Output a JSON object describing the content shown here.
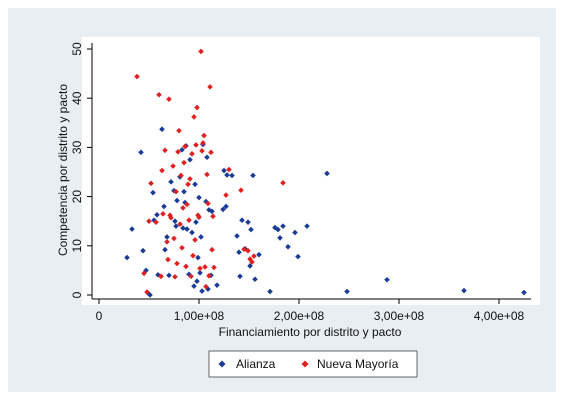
{
  "chart_data": {
    "type": "scatter",
    "xlabel": "Financiamiento por distrito y pacto",
    "ylabel": "Competencia por distrito y pacto",
    "xlim": [
      0,
      430000000
    ],
    "ylim": [
      0,
      52
    ],
    "x_ticks": [
      {
        "value": 0,
        "label": "0"
      },
      {
        "value": 100000000,
        "label": "1,00e+08"
      },
      {
        "value": 200000000,
        "label": "2,00e+08"
      },
      {
        "value": 300000000,
        "label": "3,00e+08"
      },
      {
        "value": 400000000,
        "label": "4,00e+08"
      }
    ],
    "y_ticks": [
      {
        "value": 0,
        "label": "0"
      },
      {
        "value": 10,
        "label": "10"
      },
      {
        "value": 20,
        "label": "20"
      },
      {
        "value": 30,
        "label": "30"
      },
      {
        "value": 40,
        "label": "40"
      },
      {
        "value": 50,
        "label": "50"
      }
    ],
    "legend_position": "bottom",
    "grid": false,
    "series": [
      {
        "name": "Alianza",
        "color": "#1a3c96",
        "marker": "diamond",
        "points": [
          [
            28000000,
            7.6
          ],
          [
            33000000,
            13.4
          ],
          [
            42000000,
            29
          ],
          [
            44000000,
            9
          ],
          [
            47000000,
            5
          ],
          [
            49000000,
            0.4
          ],
          [
            51000000,
            0
          ],
          [
            54000000,
            20.8
          ],
          [
            55000000,
            15.2
          ],
          [
            58000000,
            16.3
          ],
          [
            59000000,
            4.1
          ],
          [
            63000000,
            33.7
          ],
          [
            65000000,
            18
          ],
          [
            66000000,
            9.2
          ],
          [
            68000000,
            11.8
          ],
          [
            70000000,
            4
          ],
          [
            72000000,
            23
          ],
          [
            75000000,
            21.2
          ],
          [
            76000000,
            15
          ],
          [
            77000000,
            14
          ],
          [
            78000000,
            19.2
          ],
          [
            81000000,
            24
          ],
          [
            83000000,
            29.5
          ],
          [
            84000000,
            13.6
          ],
          [
            85000000,
            21
          ],
          [
            86000000,
            18.8
          ],
          [
            87000000,
            30.3
          ],
          [
            88000000,
            13.4
          ],
          [
            90000000,
            4.2
          ],
          [
            91000000,
            27.5
          ],
          [
            93000000,
            12.7
          ],
          [
            95000000,
            1.8
          ],
          [
            96000000,
            22.5
          ],
          [
            97000000,
            14.8
          ],
          [
            98000000,
            2.8
          ],
          [
            99000000,
            7.6
          ],
          [
            100000000,
            19.8
          ],
          [
            101000000,
            4.5
          ],
          [
            102000000,
            11.8
          ],
          [
            103000000,
            0.8
          ],
          [
            104000000,
            30.6
          ],
          [
            107000000,
            19
          ],
          [
            108000000,
            28
          ],
          [
            109000000,
            1.2
          ],
          [
            110000000,
            17.3
          ],
          [
            112000000,
            4
          ],
          [
            113000000,
            17
          ],
          [
            118000000,
            2
          ],
          [
            124000000,
            17.4
          ],
          [
            125000000,
            25.3
          ],
          [
            127000000,
            18
          ],
          [
            128000000,
            24.4
          ],
          [
            133000000,
            24.3
          ],
          [
            138000000,
            12
          ],
          [
            140000000,
            8.7
          ],
          [
            141000000,
            3.8
          ],
          [
            143000000,
            15.2
          ],
          [
            146000000,
            9.4
          ],
          [
            149000000,
            14.8
          ],
          [
            151000000,
            5.9
          ],
          [
            152000000,
            13.3
          ],
          [
            154000000,
            24.3
          ],
          [
            156000000,
            3.2
          ],
          [
            160000000,
            8.2
          ],
          [
            171000000,
            0.7
          ],
          [
            176000000,
            13.7
          ],
          [
            179000000,
            13.3
          ],
          [
            181000000,
            11.6
          ],
          [
            184000000,
            14
          ],
          [
            189000000,
            9.8
          ],
          [
            196000000,
            12.7
          ],
          [
            199000000,
            7.8
          ],
          [
            208000000,
            14
          ],
          [
            228000000,
            24.7
          ],
          [
            248000000,
            0.7
          ],
          [
            288000000,
            3.1
          ],
          [
            365000000,
            0.9
          ],
          [
            425000000,
            0.5
          ]
        ]
      },
      {
        "name": "Nueva Mayoría",
        "color": "#e02121",
        "marker": "diamond",
        "points": [
          [
            38000000,
            44.4
          ],
          [
            45000000,
            4.4
          ],
          [
            48000000,
            0.6
          ],
          [
            50000000,
            15
          ],
          [
            52000000,
            22.7
          ],
          [
            57000000,
            14.8
          ],
          [
            60000000,
            40.7
          ],
          [
            62000000,
            3.8
          ],
          [
            63000000,
            25.3
          ],
          [
            64000000,
            16.5
          ],
          [
            66000000,
            29.4
          ],
          [
            68000000,
            10.8
          ],
          [
            69000000,
            7.2
          ],
          [
            70000000,
            39.8
          ],
          [
            71000000,
            16.2
          ],
          [
            72000000,
            15.7
          ],
          [
            74000000,
            26.2
          ],
          [
            75000000,
            11.5
          ],
          [
            76000000,
            3.7
          ],
          [
            77000000,
            21
          ],
          [
            78000000,
            6.4
          ],
          [
            79000000,
            29.1
          ],
          [
            80000000,
            33.4
          ],
          [
            81000000,
            14.4
          ],
          [
            82000000,
            24.3
          ],
          [
            83000000,
            9.6
          ],
          [
            84000000,
            17.7
          ],
          [
            85000000,
            26.9
          ],
          [
            86000000,
            30.2
          ],
          [
            87000000,
            5.8
          ],
          [
            88000000,
            18.4
          ],
          [
            89000000,
            22.5
          ],
          [
            90000000,
            15.2
          ],
          [
            91000000,
            23.6
          ],
          [
            92000000,
            3.8
          ],
          [
            93000000,
            28.7
          ],
          [
            94000000,
            8
          ],
          [
            95000000,
            36.2
          ],
          [
            96000000,
            11.2
          ],
          [
            97000000,
            30.5
          ],
          [
            98000000,
            38.1
          ],
          [
            99000000,
            16.2
          ],
          [
            100000000,
            15.8
          ],
          [
            101000000,
            5.4
          ],
          [
            102000000,
            49.5
          ],
          [
            103000000,
            29.3
          ],
          [
            104000000,
            30.9
          ],
          [
            105000000,
            32.4
          ],
          [
            106000000,
            5.7
          ],
          [
            107000000,
            1.7
          ],
          [
            108000000,
            24.5
          ],
          [
            109000000,
            18.6
          ],
          [
            110000000,
            3.9
          ],
          [
            111000000,
            42.3
          ],
          [
            112000000,
            29
          ],
          [
            113000000,
            9.2
          ],
          [
            114000000,
            16
          ],
          [
            115000000,
            5.6
          ],
          [
            127000000,
            20.3
          ],
          [
            130000000,
            25.5
          ],
          [
            142000000,
            21.3
          ],
          [
            145000000,
            9.3
          ],
          [
            149000000,
            9
          ],
          [
            151000000,
            7.3
          ],
          [
            153000000,
            6.7
          ],
          [
            155000000,
            7.9
          ],
          [
            184000000,
            22.8
          ]
        ]
      }
    ]
  }
}
